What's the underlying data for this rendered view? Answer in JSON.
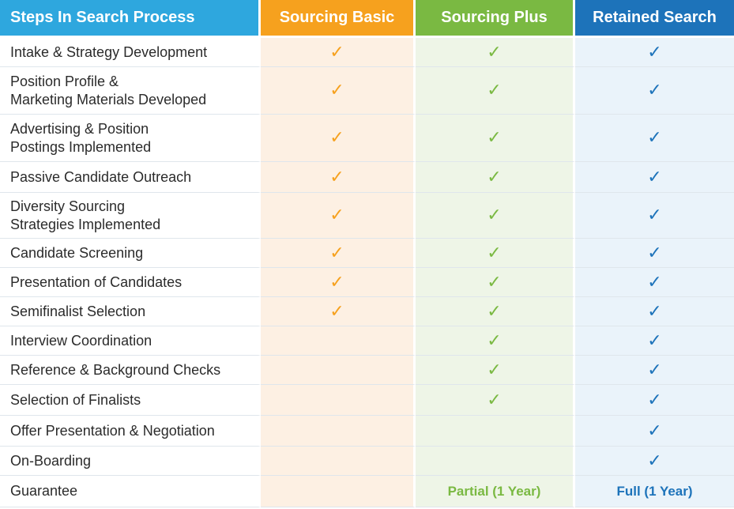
{
  "headers": {
    "steps": "Steps In Search Process",
    "basic": "Sourcing Basic",
    "plus": "Sourcing Plus",
    "retained": "Retained Search"
  },
  "colors": {
    "steps_header": "#2ea7de",
    "basic": "#f6a11e",
    "plus": "#7ab942",
    "retained": "#1d73ba"
  },
  "check_symbol": "✓",
  "rows": [
    {
      "step": [
        "Intake & Strategy Development"
      ],
      "basic": true,
      "plus": true,
      "retained": true
    },
    {
      "step": [
        "Position Profile &",
        "Marketing Materials Developed"
      ],
      "basic": true,
      "plus": true,
      "retained": true
    },
    {
      "step": [
        "Advertising & Position",
        "Postings Implemented"
      ],
      "basic": true,
      "plus": true,
      "retained": true
    },
    {
      "step": [
        "Passive Candidate Outreach"
      ],
      "basic": true,
      "plus": true,
      "retained": true
    },
    {
      "step": [
        "Diversity Sourcing",
        "Strategies Implemented"
      ],
      "basic": true,
      "plus": true,
      "retained": true
    },
    {
      "step": [
        "Candidate Screening"
      ],
      "basic": true,
      "plus": true,
      "retained": true
    },
    {
      "step": [
        "Presentation of Candidates"
      ],
      "basic": true,
      "plus": true,
      "retained": true
    },
    {
      "step": [
        "Semifinalist Selection"
      ],
      "basic": true,
      "plus": true,
      "retained": true
    },
    {
      "step": [
        "Interview Coordination"
      ],
      "basic": false,
      "plus": true,
      "retained": true
    },
    {
      "step": [
        "Reference & Background Checks"
      ],
      "basic": false,
      "plus": true,
      "retained": true
    },
    {
      "step": [
        "Selection of Finalists"
      ],
      "basic": false,
      "plus": true,
      "retained": true
    },
    {
      "step": [
        "Offer Presentation & Negotiation"
      ],
      "basic": false,
      "plus": false,
      "retained": true
    },
    {
      "step": [
        "On-Boarding"
      ],
      "basic": false,
      "plus": false,
      "retained": true
    },
    {
      "step": [
        "Guarantee"
      ],
      "basic": "",
      "plus": "Partial (1 Year)",
      "retained": "Full (1 Year)"
    }
  ]
}
